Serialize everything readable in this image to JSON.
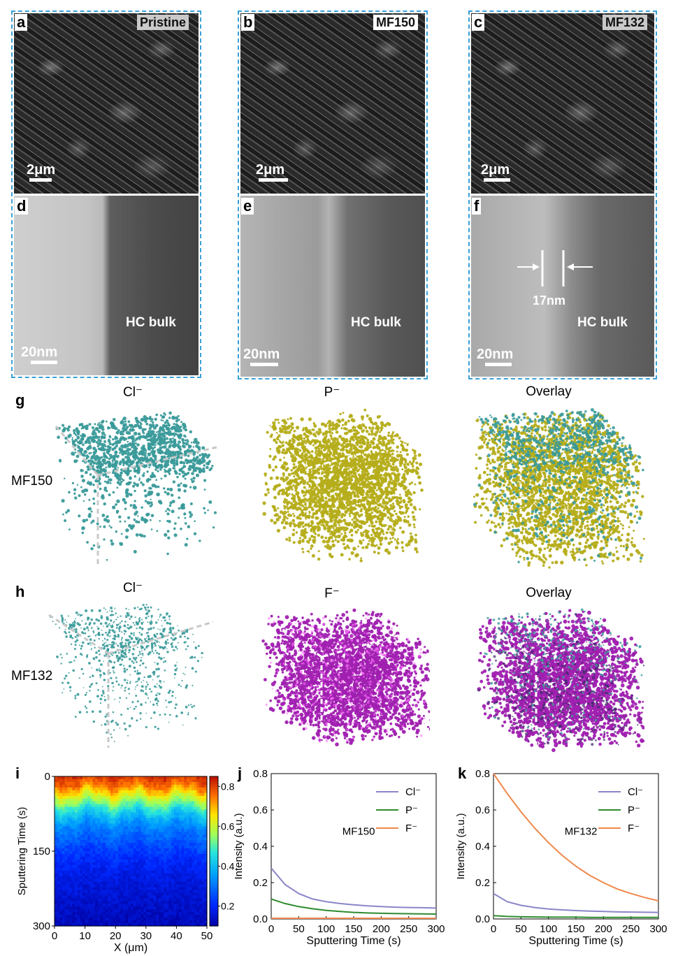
{
  "panels_top": [
    {
      "letter": "a",
      "tag": "Pristine",
      "sem_scale": "2μm",
      "tem_letter": "d",
      "tem_scale": "20nm",
      "tem_text": "HC bulk"
    },
    {
      "letter": "b",
      "tag": "MF150",
      "sem_scale": "2μm",
      "tem_letter": "e",
      "tem_scale": "20nm",
      "tem_text": "HC bulk"
    },
    {
      "letter": "c",
      "tag": "MF132",
      "sem_scale": "2μm",
      "tem_letter": "f",
      "tem_scale": "20nm",
      "tem_text": "HC bulk",
      "thickness": "17nm"
    }
  ],
  "row_g": {
    "letter": "g",
    "sample": "MF150",
    "titles": [
      "Cl⁻",
      "P⁻",
      "Overlay"
    ],
    "colors": {
      "cl": "#3a9a9a",
      "p": "#b5ad1a"
    }
  },
  "row_h": {
    "letter": "h",
    "sample": "MF132",
    "titles": [
      "Cl⁻",
      "F⁻",
      "Overlay"
    ],
    "colors": {
      "cl": "#3a9a9a",
      "f": "#a020b0"
    }
  },
  "chart_data": [
    {
      "panel": "i",
      "type": "heatmap",
      "xlabel": "X (μm)",
      "ylabel": "Sputtering Time (s)",
      "xticks": [
        0,
        10,
        20,
        30,
        40,
        50
      ],
      "yticks": [
        0,
        150,
        300
      ],
      "xlim": [
        0,
        50
      ],
      "ylim": [
        0,
        300
      ],
      "colorbar_ticks": [
        0.2,
        0.4,
        0.6,
        0.8
      ],
      "colorbar_range": [
        0.1,
        0.85
      ],
      "profile_time": [
        0,
        20,
        40,
        60,
        80,
        100,
        130,
        160,
        200,
        250,
        300
      ],
      "profile_value": [
        0.82,
        0.75,
        0.62,
        0.5,
        0.4,
        0.33,
        0.27,
        0.22,
        0.18,
        0.15,
        0.13
      ]
    },
    {
      "panel": "j",
      "type": "line",
      "annotation": "MF150",
      "xlabel": "Sputtering Time (s)",
      "ylabel": "Intensity (a.u.)",
      "xlim": [
        0,
        300
      ],
      "ylim": [
        0,
        0.8
      ],
      "xticks": [
        0,
        50,
        100,
        150,
        200,
        250,
        300
      ],
      "yticks": [
        0.0,
        0.2,
        0.4,
        0.6,
        0.8
      ],
      "x": [
        0,
        25,
        50,
        75,
        100,
        125,
        150,
        175,
        200,
        225,
        250,
        275,
        300
      ],
      "series": [
        {
          "name": "Cl⁻",
          "color": "#8a85c8",
          "values": [
            0.28,
            0.19,
            0.14,
            0.11,
            0.095,
            0.085,
            0.078,
            0.072,
            0.068,
            0.065,
            0.063,
            0.062,
            0.06
          ]
        },
        {
          "name": "P⁻",
          "color": "#2e8b2e",
          "values": [
            0.11,
            0.085,
            0.068,
            0.056,
            0.047,
            0.041,
            0.036,
            0.033,
            0.031,
            0.03,
            0.029,
            0.028,
            0.027
          ]
        },
        {
          "name": "F⁻",
          "color": "#f0884a",
          "values": [
            0.004,
            0.004,
            0.004,
            0.004,
            0.004,
            0.004,
            0.004,
            0.004,
            0.004,
            0.004,
            0.004,
            0.004,
            0.004
          ]
        }
      ]
    },
    {
      "panel": "k",
      "type": "line",
      "annotation": "MF132",
      "xlabel": "Sputtering Time (s)",
      "ylabel": "Intensity (a.u.)",
      "xlim": [
        0,
        300
      ],
      "ylim": [
        0,
        0.8
      ],
      "xticks": [
        0,
        50,
        100,
        150,
        200,
        250,
        300
      ],
      "yticks": [
        0.0,
        0.2,
        0.4,
        0.6,
        0.8
      ],
      "x": [
        0,
        25,
        50,
        75,
        100,
        125,
        150,
        175,
        200,
        225,
        250,
        275,
        300
      ],
      "series": [
        {
          "name": "Cl⁻",
          "color": "#8a85c8",
          "values": [
            0.14,
            0.095,
            0.075,
            0.063,
            0.055,
            0.05,
            0.046,
            0.043,
            0.041,
            0.039,
            0.038,
            0.037,
            0.036
          ]
        },
        {
          "name": "P⁻",
          "color": "#2e8b2e",
          "values": [
            0.018,
            0.014,
            0.012,
            0.011,
            0.01,
            0.01,
            0.01,
            0.009,
            0.009,
            0.009,
            0.009,
            0.009,
            0.009
          ]
        },
        {
          "name": "F⁻",
          "color": "#f0884a",
          "values": [
            0.8,
            0.69,
            0.59,
            0.5,
            0.42,
            0.35,
            0.29,
            0.24,
            0.2,
            0.165,
            0.14,
            0.118,
            0.1
          ]
        }
      ]
    }
  ]
}
